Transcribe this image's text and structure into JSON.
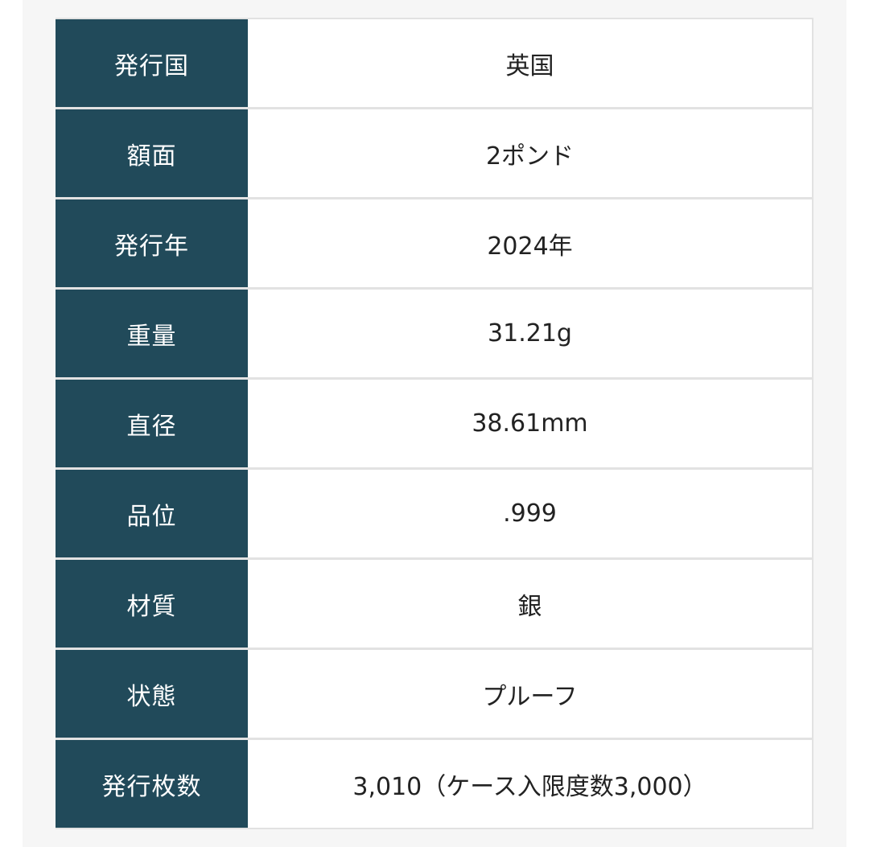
{
  "colors": {
    "header_bg": "#214a5a",
    "border": "#e2e2e2"
  },
  "rows": [
    {
      "label": "発行国",
      "value": "英国"
    },
    {
      "label": "額面",
      "value": "2ポンド"
    },
    {
      "label": "発行年",
      "value": "2024年"
    },
    {
      "label": "重量",
      "value": "31.21g"
    },
    {
      "label": "直径",
      "value": "38.61mm"
    },
    {
      "label": "品位",
      "value": ".999"
    },
    {
      "label": "材質",
      "value": "銀"
    },
    {
      "label": "状態",
      "value": "プルーフ"
    },
    {
      "label": "発行枚数",
      "value": "3,010（ケース入限度数3,000）"
    }
  ]
}
